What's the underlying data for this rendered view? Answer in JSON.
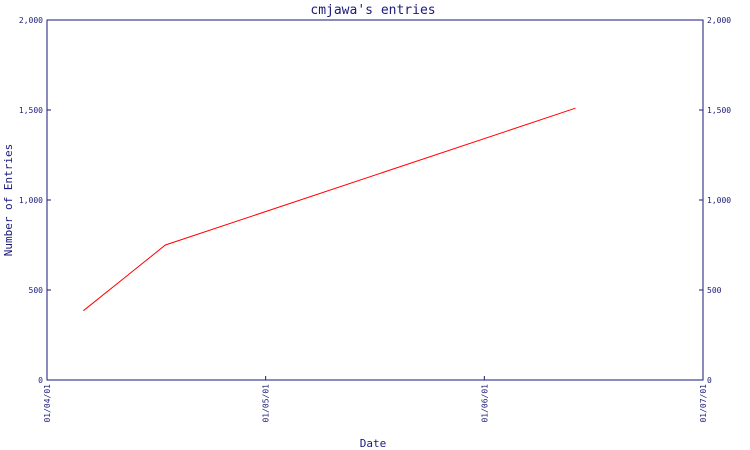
{
  "chart_data": {
    "type": "line",
    "title": "cmjawa's entries",
    "xlabel": "Date",
    "ylabel": "Number of Entries",
    "ylim": [
      0,
      2000
    ],
    "y_ticks": [
      "0",
      "500",
      "1,000",
      "1,500",
      "2,000"
    ],
    "y_tick_values": [
      0,
      500,
      1000,
      1500,
      2000
    ],
    "x_ticks": [
      "01/04/01",
      "01/05/01",
      "01/06/01",
      "01/07/01"
    ],
    "x_tick_values": [
      "2001-01-04",
      "2001-01-05",
      "2001-01-06",
      "2001-01-07"
    ],
    "xlim": [
      "2001-01-04",
      "2001-01-07"
    ],
    "grid": false,
    "colors": {
      "axis": "#1a1a7a",
      "line": "#ff0000"
    },
    "series": [
      {
        "x": [
          "2001-01-04 04:00",
          "2001-01-04 13:00",
          "2001-01-06 10:00"
        ],
        "values": [
          385,
          750,
          1510
        ]
      }
    ]
  }
}
